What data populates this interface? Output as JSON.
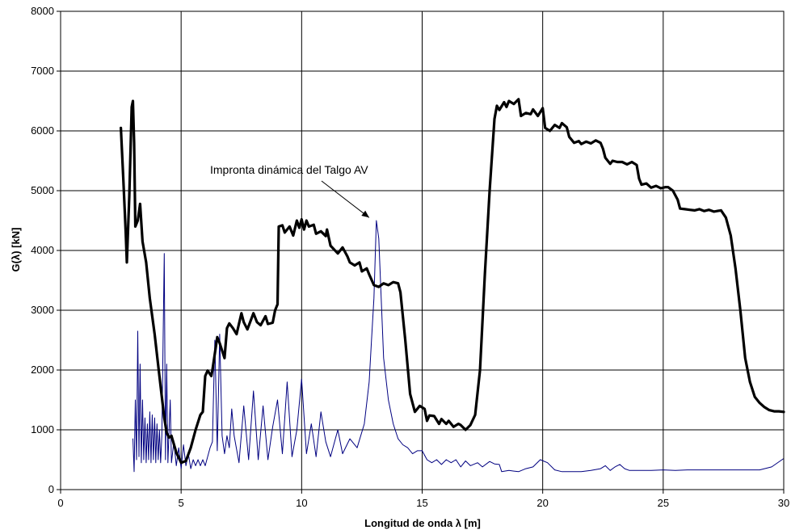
{
  "chart_data": {
    "type": "line",
    "title": "",
    "xlabel": "Longitud de onda λ [m]",
    "ylabel": "G(λ) [kN]",
    "xlim": [
      0,
      30
    ],
    "ylim": [
      0,
      8000
    ],
    "xticks": [
      0,
      5,
      10,
      15,
      20,
      25,
      30
    ],
    "yticks": [
      0,
      1000,
      2000,
      3000,
      4000,
      5000,
      6000,
      7000,
      8000
    ],
    "grid": true,
    "annotation": {
      "text": "Impronta dinámica del Talgo AV",
      "target": [
        12.8,
        4550
      ]
    },
    "series": [
      {
        "style": "thick-black",
        "color": "#000000",
        "points": [
          [
            2.5,
            6050
          ],
          [
            2.6,
            5200
          ],
          [
            2.7,
            4300
          ],
          [
            2.75,
            3800
          ],
          [
            2.85,
            4900
          ],
          [
            2.95,
            6400
          ],
          [
            3.0,
            6500
          ],
          [
            3.05,
            5800
          ],
          [
            3.1,
            4400
          ],
          [
            3.2,
            4500
          ],
          [
            3.3,
            4780
          ],
          [
            3.4,
            4150
          ],
          [
            3.55,
            3800
          ],
          [
            3.7,
            3200
          ],
          [
            3.9,
            2600
          ],
          [
            4.1,
            1900
          ],
          [
            4.3,
            1200
          ],
          [
            4.4,
            950
          ],
          [
            4.5,
            870
          ],
          [
            4.6,
            900
          ],
          [
            4.8,
            620
          ],
          [
            5.0,
            450
          ],
          [
            5.2,
            480
          ],
          [
            5.4,
            700
          ],
          [
            5.6,
            1000
          ],
          [
            5.8,
            1250
          ],
          [
            5.9,
            1300
          ],
          [
            6.0,
            1900
          ],
          [
            6.1,
            1990
          ],
          [
            6.25,
            1900
          ],
          [
            6.3,
            2000
          ],
          [
            6.5,
            2550
          ],
          [
            6.6,
            2450
          ],
          [
            6.8,
            2200
          ],
          [
            6.9,
            2700
          ],
          [
            7.0,
            2780
          ],
          [
            7.15,
            2700
          ],
          [
            7.3,
            2600
          ],
          [
            7.5,
            2950
          ],
          [
            7.6,
            2800
          ],
          [
            7.75,
            2680
          ],
          [
            8.0,
            2950
          ],
          [
            8.15,
            2800
          ],
          [
            8.3,
            2750
          ],
          [
            8.5,
            2900
          ],
          [
            8.6,
            2770
          ],
          [
            8.8,
            2790
          ],
          [
            8.9,
            3000
          ],
          [
            9.0,
            3100
          ],
          [
            9.05,
            4400
          ],
          [
            9.2,
            4420
          ],
          [
            9.3,
            4300
          ],
          [
            9.5,
            4400
          ],
          [
            9.65,
            4250
          ],
          [
            9.8,
            4500
          ],
          [
            9.9,
            4380
          ],
          [
            10.0,
            4520
          ],
          [
            10.1,
            4350
          ],
          [
            10.2,
            4500
          ],
          [
            10.3,
            4400
          ],
          [
            10.5,
            4430
          ],
          [
            10.6,
            4280
          ],
          [
            10.8,
            4320
          ],
          [
            11.0,
            4240
          ],
          [
            11.05,
            4350
          ],
          [
            11.2,
            4080
          ],
          [
            11.5,
            3950
          ],
          [
            11.7,
            4050
          ],
          [
            11.9,
            3900
          ],
          [
            12.0,
            3800
          ],
          [
            12.2,
            3750
          ],
          [
            12.4,
            3800
          ],
          [
            12.5,
            3650
          ],
          [
            12.7,
            3700
          ],
          [
            12.8,
            3600
          ],
          [
            13.0,
            3420
          ],
          [
            13.2,
            3390
          ],
          [
            13.4,
            3450
          ],
          [
            13.6,
            3420
          ],
          [
            13.8,
            3470
          ],
          [
            14.0,
            3450
          ],
          [
            14.1,
            3300
          ],
          [
            14.3,
            2500
          ],
          [
            14.5,
            1600
          ],
          [
            14.7,
            1300
          ],
          [
            14.9,
            1400
          ],
          [
            15.1,
            1350
          ],
          [
            15.2,
            1150
          ],
          [
            15.3,
            1240
          ],
          [
            15.5,
            1230
          ],
          [
            15.7,
            1100
          ],
          [
            15.8,
            1180
          ],
          [
            16.0,
            1100
          ],
          [
            16.1,
            1150
          ],
          [
            16.3,
            1050
          ],
          [
            16.5,
            1100
          ],
          [
            16.6,
            1080
          ],
          [
            16.8,
            1000
          ],
          [
            17.0,
            1080
          ],
          [
            17.2,
            1250
          ],
          [
            17.4,
            2000
          ],
          [
            17.6,
            3600
          ],
          [
            17.8,
            5000
          ],
          [
            18.0,
            6200
          ],
          [
            18.1,
            6420
          ],
          [
            18.2,
            6350
          ],
          [
            18.4,
            6480
          ],
          [
            18.5,
            6400
          ],
          [
            18.6,
            6500
          ],
          [
            18.8,
            6450
          ],
          [
            19.0,
            6530
          ],
          [
            19.1,
            6250
          ],
          [
            19.3,
            6300
          ],
          [
            19.5,
            6280
          ],
          [
            19.6,
            6360
          ],
          [
            19.8,
            6250
          ],
          [
            20.0,
            6380
          ],
          [
            20.1,
            6050
          ],
          [
            20.3,
            6000
          ],
          [
            20.5,
            6100
          ],
          [
            20.7,
            6050
          ],
          [
            20.8,
            6130
          ],
          [
            21.0,
            6060
          ],
          [
            21.1,
            5900
          ],
          [
            21.3,
            5800
          ],
          [
            21.5,
            5830
          ],
          [
            21.6,
            5780
          ],
          [
            21.8,
            5820
          ],
          [
            22.0,
            5790
          ],
          [
            22.2,
            5840
          ],
          [
            22.4,
            5800
          ],
          [
            22.5,
            5700
          ],
          [
            22.6,
            5550
          ],
          [
            22.8,
            5450
          ],
          [
            22.9,
            5500
          ],
          [
            23.1,
            5480
          ],
          [
            23.3,
            5480
          ],
          [
            23.5,
            5440
          ],
          [
            23.7,
            5480
          ],
          [
            23.9,
            5430
          ],
          [
            24.0,
            5200
          ],
          [
            24.1,
            5100
          ],
          [
            24.3,
            5120
          ],
          [
            24.5,
            5050
          ],
          [
            24.7,
            5080
          ],
          [
            24.9,
            5040
          ],
          [
            25.1,
            5060
          ],
          [
            25.2,
            5060
          ],
          [
            25.4,
            5000
          ],
          [
            25.6,
            4850
          ],
          [
            25.7,
            4700
          ],
          [
            25.9,
            4690
          ],
          [
            26.1,
            4680
          ],
          [
            26.3,
            4670
          ],
          [
            26.5,
            4690
          ],
          [
            26.7,
            4660
          ],
          [
            26.9,
            4680
          ],
          [
            27.1,
            4650
          ],
          [
            27.4,
            4670
          ],
          [
            27.6,
            4550
          ],
          [
            27.8,
            4250
          ],
          [
            28.0,
            3700
          ],
          [
            28.2,
            3000
          ],
          [
            28.4,
            2200
          ],
          [
            28.6,
            1800
          ],
          [
            28.8,
            1550
          ],
          [
            29.0,
            1450
          ],
          [
            29.2,
            1380
          ],
          [
            29.4,
            1330
          ],
          [
            29.6,
            1310
          ],
          [
            29.8,
            1310
          ],
          [
            30.0,
            1300
          ]
        ]
      },
      {
        "style": "thin-navy",
        "color": "#000080",
        "points": [
          [
            3.0,
            850
          ],
          [
            3.05,
            300
          ],
          [
            3.1,
            1500
          ],
          [
            3.15,
            500
          ],
          [
            3.2,
            2650
          ],
          [
            3.25,
            550
          ],
          [
            3.3,
            2100
          ],
          [
            3.35,
            450
          ],
          [
            3.4,
            1500
          ],
          [
            3.45,
            500
          ],
          [
            3.5,
            1200
          ],
          [
            3.55,
            450
          ],
          [
            3.6,
            1100
          ],
          [
            3.65,
            500
          ],
          [
            3.7,
            1300
          ],
          [
            3.75,
            450
          ],
          [
            3.8,
            1250
          ],
          [
            3.85,
            500
          ],
          [
            3.9,
            1200
          ],
          [
            3.95,
            450
          ],
          [
            4.0,
            1100
          ],
          [
            4.05,
            500
          ],
          [
            4.1,
            1000
          ],
          [
            4.15,
            450
          ],
          [
            4.2,
            900
          ],
          [
            4.3,
            3950
          ],
          [
            4.35,
            500
          ],
          [
            4.4,
            2100
          ],
          [
            4.45,
            450
          ],
          [
            4.55,
            1500
          ],
          [
            4.6,
            450
          ],
          [
            4.7,
            800
          ],
          [
            4.8,
            400
          ],
          [
            4.9,
            700
          ],
          [
            5.0,
            350
          ],
          [
            5.1,
            750
          ],
          [
            5.2,
            400
          ],
          [
            5.3,
            600
          ],
          [
            5.4,
            350
          ],
          [
            5.5,
            500
          ],
          [
            5.6,
            400
          ],
          [
            5.7,
            500
          ],
          [
            5.8,
            400
          ],
          [
            5.9,
            500
          ],
          [
            6.0,
            400
          ],
          [
            6.2,
            700
          ],
          [
            6.3,
            800
          ],
          [
            6.4,
            2500
          ],
          [
            6.5,
            650
          ],
          [
            6.6,
            2600
          ],
          [
            6.7,
            900
          ],
          [
            6.8,
            600
          ],
          [
            6.9,
            900
          ],
          [
            7.0,
            700
          ],
          [
            7.1,
            1350
          ],
          [
            7.2,
            900
          ],
          [
            7.4,
            450
          ],
          [
            7.6,
            1400
          ],
          [
            7.8,
            500
          ],
          [
            8.0,
            1650
          ],
          [
            8.2,
            500
          ],
          [
            8.4,
            1400
          ],
          [
            8.6,
            500
          ],
          [
            8.8,
            1050
          ],
          [
            9.0,
            1500
          ],
          [
            9.2,
            600
          ],
          [
            9.4,
            1800
          ],
          [
            9.6,
            550
          ],
          [
            9.8,
            1000
          ],
          [
            10.0,
            1850
          ],
          [
            10.2,
            600
          ],
          [
            10.4,
            1100
          ],
          [
            10.6,
            550
          ],
          [
            10.8,
            1300
          ],
          [
            11.0,
            800
          ],
          [
            11.2,
            550
          ],
          [
            11.5,
            1000
          ],
          [
            11.7,
            600
          ],
          [
            12.0,
            850
          ],
          [
            12.3,
            700
          ],
          [
            12.6,
            1100
          ],
          [
            12.8,
            1800
          ],
          [
            12.9,
            2500
          ],
          [
            13.0,
            3200
          ],
          [
            13.1,
            4500
          ],
          [
            13.2,
            4200
          ],
          [
            13.3,
            3200
          ],
          [
            13.4,
            2200
          ],
          [
            13.6,
            1500
          ],
          [
            13.8,
            1100
          ],
          [
            14.0,
            850
          ],
          [
            14.2,
            750
          ],
          [
            14.4,
            700
          ],
          [
            14.6,
            600
          ],
          [
            14.8,
            650
          ],
          [
            15.0,
            650
          ],
          [
            15.2,
            500
          ],
          [
            15.4,
            450
          ],
          [
            15.6,
            500
          ],
          [
            15.8,
            420
          ],
          [
            16.0,
            500
          ],
          [
            16.2,
            450
          ],
          [
            16.4,
            500
          ],
          [
            16.6,
            380
          ],
          [
            16.8,
            480
          ],
          [
            17.0,
            400
          ],
          [
            17.3,
            450
          ],
          [
            17.5,
            380
          ],
          [
            17.8,
            470
          ],
          [
            18.0,
            430
          ],
          [
            18.2,
            420
          ],
          [
            18.3,
            300
          ],
          [
            18.6,
            320
          ],
          [
            19.0,
            300
          ],
          [
            19.3,
            350
          ],
          [
            19.6,
            380
          ],
          [
            19.9,
            500
          ],
          [
            20.2,
            450
          ],
          [
            20.5,
            330
          ],
          [
            20.8,
            300
          ],
          [
            21.2,
            300
          ],
          [
            21.6,
            300
          ],
          [
            22.0,
            320
          ],
          [
            22.4,
            350
          ],
          [
            22.6,
            400
          ],
          [
            22.8,
            320
          ],
          [
            23.0,
            380
          ],
          [
            23.2,
            420
          ],
          [
            23.4,
            350
          ],
          [
            23.6,
            320
          ],
          [
            24.0,
            320
          ],
          [
            24.5,
            320
          ],
          [
            25.0,
            330
          ],
          [
            25.5,
            320
          ],
          [
            26.0,
            330
          ],
          [
            26.5,
            330
          ],
          [
            27.0,
            330
          ],
          [
            27.5,
            330
          ],
          [
            28.0,
            330
          ],
          [
            28.5,
            330
          ],
          [
            29.0,
            330
          ],
          [
            29.5,
            380
          ],
          [
            30.0,
            520
          ]
        ]
      }
    ]
  }
}
